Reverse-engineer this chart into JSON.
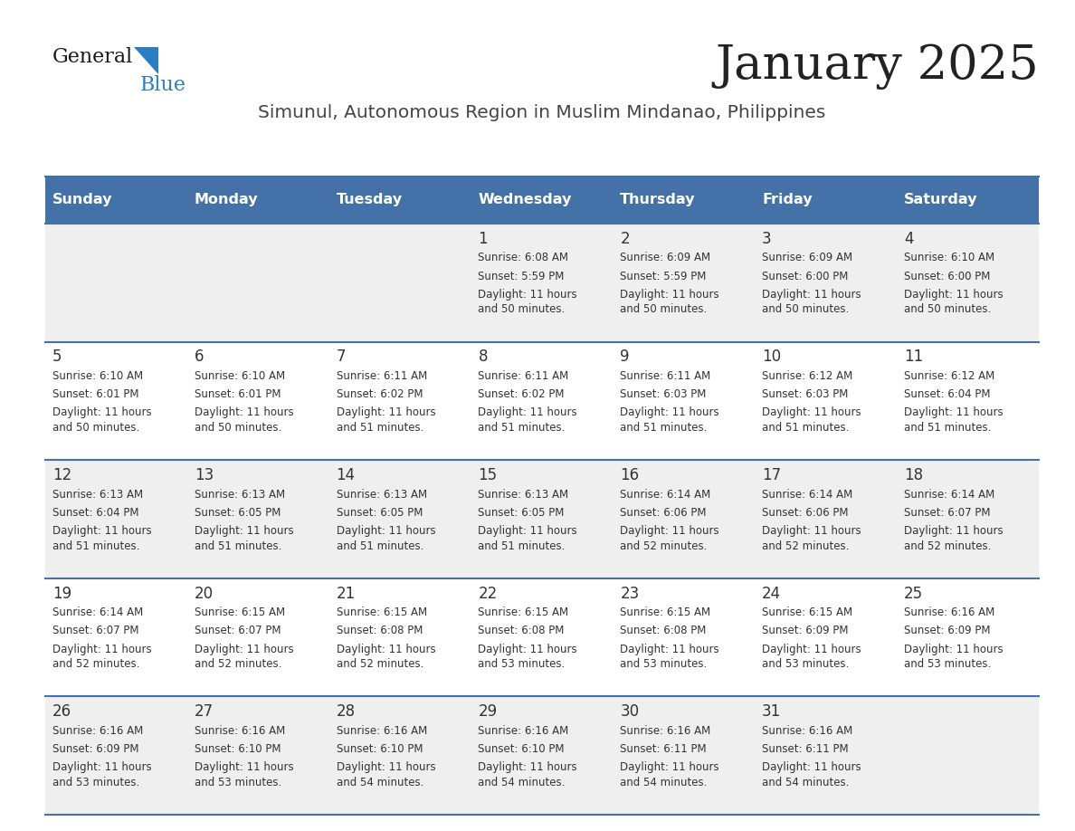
{
  "title": "January 2025",
  "subtitle": "Simunul, Autonomous Region in Muslim Mindanao, Philippines",
  "header_bg_color": "#4472A8",
  "header_text_color": "#FFFFFF",
  "day_names": [
    "Sunday",
    "Monday",
    "Tuesday",
    "Wednesday",
    "Thursday",
    "Friday",
    "Saturday"
  ],
  "row_bg_even": "#EFEFEF",
  "row_bg_odd": "#FFFFFF",
  "cell_border_color": "#4472A8",
  "day_num_color": "#333333",
  "cell_text_color": "#333333",
  "title_color": "#222222",
  "subtitle_color": "#444444",
  "logo_general_color": "#1A1A1A",
  "logo_blue_color": "#2B7EC1",
  "calendar_data": [
    [
      {
        "day": null
      },
      {
        "day": null
      },
      {
        "day": null
      },
      {
        "day": 1,
        "sunrise": "6:08 AM",
        "sunset": "5:59 PM",
        "daylight": "11 hours\nand 50 minutes."
      },
      {
        "day": 2,
        "sunrise": "6:09 AM",
        "sunset": "5:59 PM",
        "daylight": "11 hours\nand 50 minutes."
      },
      {
        "day": 3,
        "sunrise": "6:09 AM",
        "sunset": "6:00 PM",
        "daylight": "11 hours\nand 50 minutes."
      },
      {
        "day": 4,
        "sunrise": "6:10 AM",
        "sunset": "6:00 PM",
        "daylight": "11 hours\nand 50 minutes."
      }
    ],
    [
      {
        "day": 5,
        "sunrise": "6:10 AM",
        "sunset": "6:01 PM",
        "daylight": "11 hours\nand 50 minutes."
      },
      {
        "day": 6,
        "sunrise": "6:10 AM",
        "sunset": "6:01 PM",
        "daylight": "11 hours\nand 50 minutes."
      },
      {
        "day": 7,
        "sunrise": "6:11 AM",
        "sunset": "6:02 PM",
        "daylight": "11 hours\nand 51 minutes."
      },
      {
        "day": 8,
        "sunrise": "6:11 AM",
        "sunset": "6:02 PM",
        "daylight": "11 hours\nand 51 minutes."
      },
      {
        "day": 9,
        "sunrise": "6:11 AM",
        "sunset": "6:03 PM",
        "daylight": "11 hours\nand 51 minutes."
      },
      {
        "day": 10,
        "sunrise": "6:12 AM",
        "sunset": "6:03 PM",
        "daylight": "11 hours\nand 51 minutes."
      },
      {
        "day": 11,
        "sunrise": "6:12 AM",
        "sunset": "6:04 PM",
        "daylight": "11 hours\nand 51 minutes."
      }
    ],
    [
      {
        "day": 12,
        "sunrise": "6:13 AM",
        "sunset": "6:04 PM",
        "daylight": "11 hours\nand 51 minutes."
      },
      {
        "day": 13,
        "sunrise": "6:13 AM",
        "sunset": "6:05 PM",
        "daylight": "11 hours\nand 51 minutes."
      },
      {
        "day": 14,
        "sunrise": "6:13 AM",
        "sunset": "6:05 PM",
        "daylight": "11 hours\nand 51 minutes."
      },
      {
        "day": 15,
        "sunrise": "6:13 AM",
        "sunset": "6:05 PM",
        "daylight": "11 hours\nand 51 minutes."
      },
      {
        "day": 16,
        "sunrise": "6:14 AM",
        "sunset": "6:06 PM",
        "daylight": "11 hours\nand 52 minutes."
      },
      {
        "day": 17,
        "sunrise": "6:14 AM",
        "sunset": "6:06 PM",
        "daylight": "11 hours\nand 52 minutes."
      },
      {
        "day": 18,
        "sunrise": "6:14 AM",
        "sunset": "6:07 PM",
        "daylight": "11 hours\nand 52 minutes."
      }
    ],
    [
      {
        "day": 19,
        "sunrise": "6:14 AM",
        "sunset": "6:07 PM",
        "daylight": "11 hours\nand 52 minutes."
      },
      {
        "day": 20,
        "sunrise": "6:15 AM",
        "sunset": "6:07 PM",
        "daylight": "11 hours\nand 52 minutes."
      },
      {
        "day": 21,
        "sunrise": "6:15 AM",
        "sunset": "6:08 PM",
        "daylight": "11 hours\nand 52 minutes."
      },
      {
        "day": 22,
        "sunrise": "6:15 AM",
        "sunset": "6:08 PM",
        "daylight": "11 hours\nand 53 minutes."
      },
      {
        "day": 23,
        "sunrise": "6:15 AM",
        "sunset": "6:08 PM",
        "daylight": "11 hours\nand 53 minutes."
      },
      {
        "day": 24,
        "sunrise": "6:15 AM",
        "sunset": "6:09 PM",
        "daylight": "11 hours\nand 53 minutes."
      },
      {
        "day": 25,
        "sunrise": "6:16 AM",
        "sunset": "6:09 PM",
        "daylight": "11 hours\nand 53 minutes."
      }
    ],
    [
      {
        "day": 26,
        "sunrise": "6:16 AM",
        "sunset": "6:09 PM",
        "daylight": "11 hours\nand 53 minutes."
      },
      {
        "day": 27,
        "sunrise": "6:16 AM",
        "sunset": "6:10 PM",
        "daylight": "11 hours\nand 53 minutes."
      },
      {
        "day": 28,
        "sunrise": "6:16 AM",
        "sunset": "6:10 PM",
        "daylight": "11 hours\nand 54 minutes."
      },
      {
        "day": 29,
        "sunrise": "6:16 AM",
        "sunset": "6:10 PM",
        "daylight": "11 hours\nand 54 minutes."
      },
      {
        "day": 30,
        "sunrise": "6:16 AM",
        "sunset": "6:11 PM",
        "daylight": "11 hours\nand 54 minutes."
      },
      {
        "day": 31,
        "sunrise": "6:16 AM",
        "sunset": "6:11 PM",
        "daylight": "11 hours\nand 54 minutes."
      },
      {
        "day": null
      }
    ]
  ]
}
